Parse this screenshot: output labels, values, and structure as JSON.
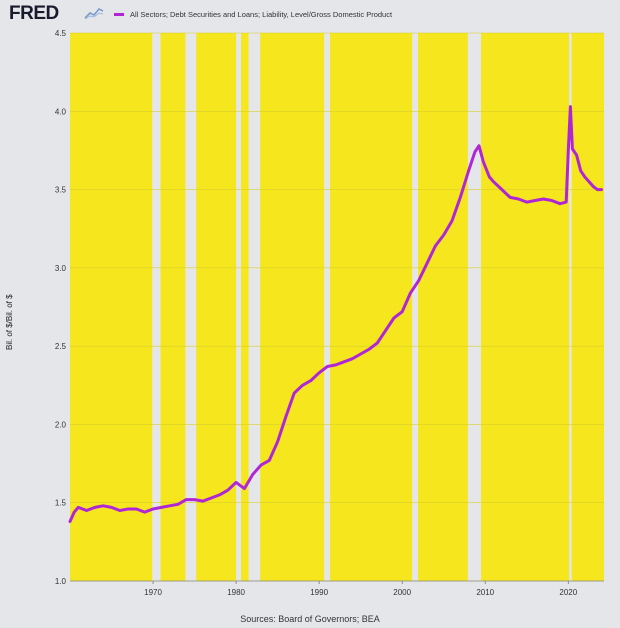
{
  "header": {
    "logo": "FRED",
    "legend_label": "All Sectors; Debt Securities and Loans; Liability, Level/Gross Domestic Product"
  },
  "colors": {
    "series": "#b026d6",
    "recession": "#f5e61e",
    "background": "#e5e6ea",
    "grid": "#d8cf2a"
  },
  "footer": {
    "source": "Sources: Board of Governors; BEA"
  },
  "chart_data": {
    "type": "line",
    "title": "",
    "xlabel": "",
    "ylabel": "Bil. of $/Bil. of $",
    "ylim": [
      1.0,
      4.5
    ],
    "xlim": [
      1960.0,
      2024.3
    ],
    "yticks": [
      "1.0",
      "1.5",
      "2.0",
      "2.5",
      "3.0",
      "3.5",
      "4.0",
      "4.5"
    ],
    "xticks": [
      "1970",
      "1980",
      "1990",
      "2000",
      "2010",
      "2020"
    ],
    "grid": true,
    "legend_position": "top-left",
    "recession_gaps": [
      [
        1969.9,
        1970.9
      ],
      [
        1973.9,
        1975.2
      ],
      [
        1980.0,
        1980.6
      ],
      [
        1981.5,
        1982.9
      ],
      [
        1990.6,
        1991.3
      ],
      [
        2001.2,
        2001.9
      ],
      [
        2007.9,
        2009.5
      ],
      [
        2020.1,
        2020.4
      ]
    ],
    "series": [
      {
        "name": "All Sectors; Debt Securities and Loans; Liability, Level/Gross Domestic Product",
        "x": [
          1960.0,
          1960.5,
          1961.0,
          1962.0,
          1963.0,
          1964.0,
          1965.0,
          1966.0,
          1967.0,
          1968.0,
          1969.0,
          1970.0,
          1971.0,
          1972.0,
          1973.0,
          1974.0,
          1975.0,
          1976.0,
          1977.0,
          1978.0,
          1979.0,
          1980.0,
          1981.0,
          1982.0,
          1983.0,
          1984.0,
          1985.0,
          1986.0,
          1987.0,
          1988.0,
          1989.0,
          1990.0,
          1991.0,
          1992.0,
          1993.0,
          1994.0,
          1995.0,
          1996.0,
          1997.0,
          1998.0,
          1999.0,
          2000.0,
          2001.0,
          2002.0,
          2003.0,
          2004.0,
          2005.0,
          2006.0,
          2007.0,
          2008.0,
          2008.75,
          2009.25,
          2009.75,
          2010.5,
          2011.0,
          2012.0,
          2013.0,
          2014.0,
          2015.0,
          2016.0,
          2017.0,
          2018.0,
          2019.0,
          2019.75,
          2020.0,
          2020.25,
          2020.5,
          2021.0,
          2021.5,
          2022.0,
          2022.5,
          2023.0,
          2023.5,
          2024.0
        ],
        "values": [
          1.38,
          1.44,
          1.47,
          1.45,
          1.47,
          1.48,
          1.47,
          1.45,
          1.46,
          1.46,
          1.44,
          1.46,
          1.47,
          1.48,
          1.49,
          1.52,
          1.52,
          1.51,
          1.53,
          1.55,
          1.58,
          1.63,
          1.59,
          1.68,
          1.74,
          1.77,
          1.89,
          2.05,
          2.2,
          2.25,
          2.28,
          2.33,
          2.37,
          2.38,
          2.4,
          2.42,
          2.45,
          2.48,
          2.52,
          2.6,
          2.68,
          2.72,
          2.84,
          2.92,
          3.03,
          3.14,
          3.21,
          3.3,
          3.45,
          3.62,
          3.74,
          3.78,
          3.68,
          3.58,
          3.55,
          3.5,
          3.45,
          3.44,
          3.42,
          3.43,
          3.44,
          3.43,
          3.41,
          3.42,
          3.75,
          4.03,
          3.76,
          3.72,
          3.62,
          3.58,
          3.55,
          3.52,
          3.5,
          3.5
        ]
      }
    ]
  }
}
